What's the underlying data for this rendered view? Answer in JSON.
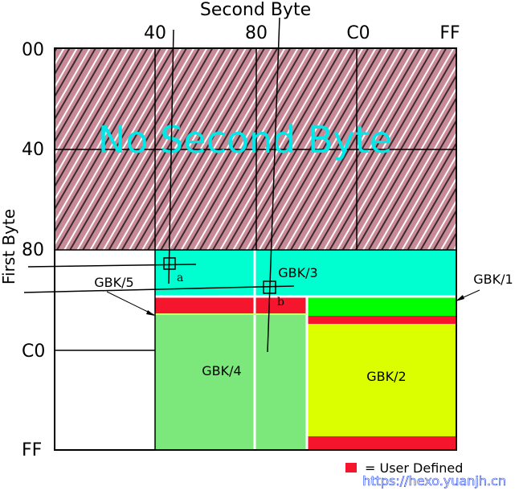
{
  "title": "Second Byte",
  "y_axis_label": "First Byte",
  "x_ticks": [
    "40",
    "80",
    "C0",
    "FF"
  ],
  "y_ticks": [
    "00",
    "40",
    "80",
    "C0",
    "FF"
  ],
  "overlay_text": "No Second Byte",
  "regions": {
    "gbk1": "GBK/1",
    "gbk2": "GBK/2",
    "gbk3": "GBK/3",
    "gbk4": "GBK/4",
    "gbk5": "GBK/5"
  },
  "markers": {
    "a": "a",
    "b": "b"
  },
  "legend": {
    "text": "= User Defined",
    "color": "#f5152d"
  },
  "watermark": "https://hexo.yuanjh.cn",
  "colors": {
    "no_second_byte": "#c98a98",
    "gbk1": "#00ffd0",
    "gbk2": "#dcff00",
    "gbk3": "#00ffd0",
    "gbk4": "#7ce87c",
    "gbk5_top": "#00ff00",
    "user_defined": "#f5152d",
    "overlay_text": "#00e8e8"
  }
}
